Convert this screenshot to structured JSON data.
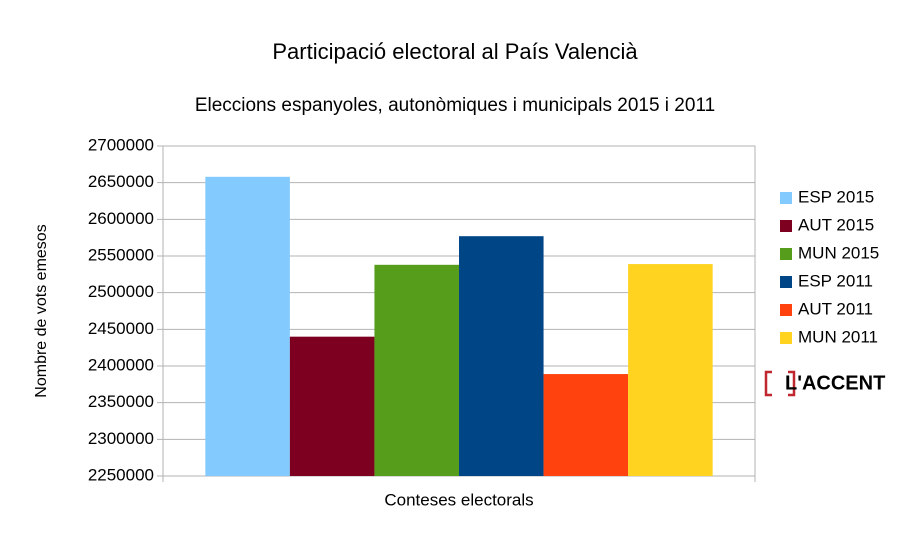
{
  "chart_data": {
    "type": "bar",
    "title": "Participació electoral al País Valencià",
    "subtitle": "Eleccions espanyoles, autonòmiques i municipals 2015 i 2011",
    "y_label": "Nombre de vots emesos",
    "x_label": "Conteses electorals",
    "categories": [
      null
    ],
    "series": [
      {
        "name": "ESP 2015",
        "color": "#83caff",
        "values": [
          2658000
        ]
      },
      {
        "name": "AUT 2015",
        "color": "#7e0021",
        "values": [
          2440000
        ]
      },
      {
        "name": "MUN 2015",
        "color": "#579d1c",
        "values": [
          2538000
        ]
      },
      {
        "name": "ESP 2011",
        "color": "#004586",
        "values": [
          2577000
        ]
      },
      {
        "name": "AUT 2011",
        "color": "#ff420e",
        "values": [
          2389000
        ]
      },
      {
        "name": "MUN 2011",
        "color": "#ffd320",
        "values": [
          2539000
        ]
      }
    ],
    "ylim": [
      2250000,
      2700000
    ],
    "yticks": [
      2250000,
      2300000,
      2350000,
      2400000,
      2450000,
      2500000,
      2550000,
      2600000,
      2650000,
      2700000
    ],
    "grid": true,
    "legend": "right",
    "watermark": "L'ACCENT"
  }
}
